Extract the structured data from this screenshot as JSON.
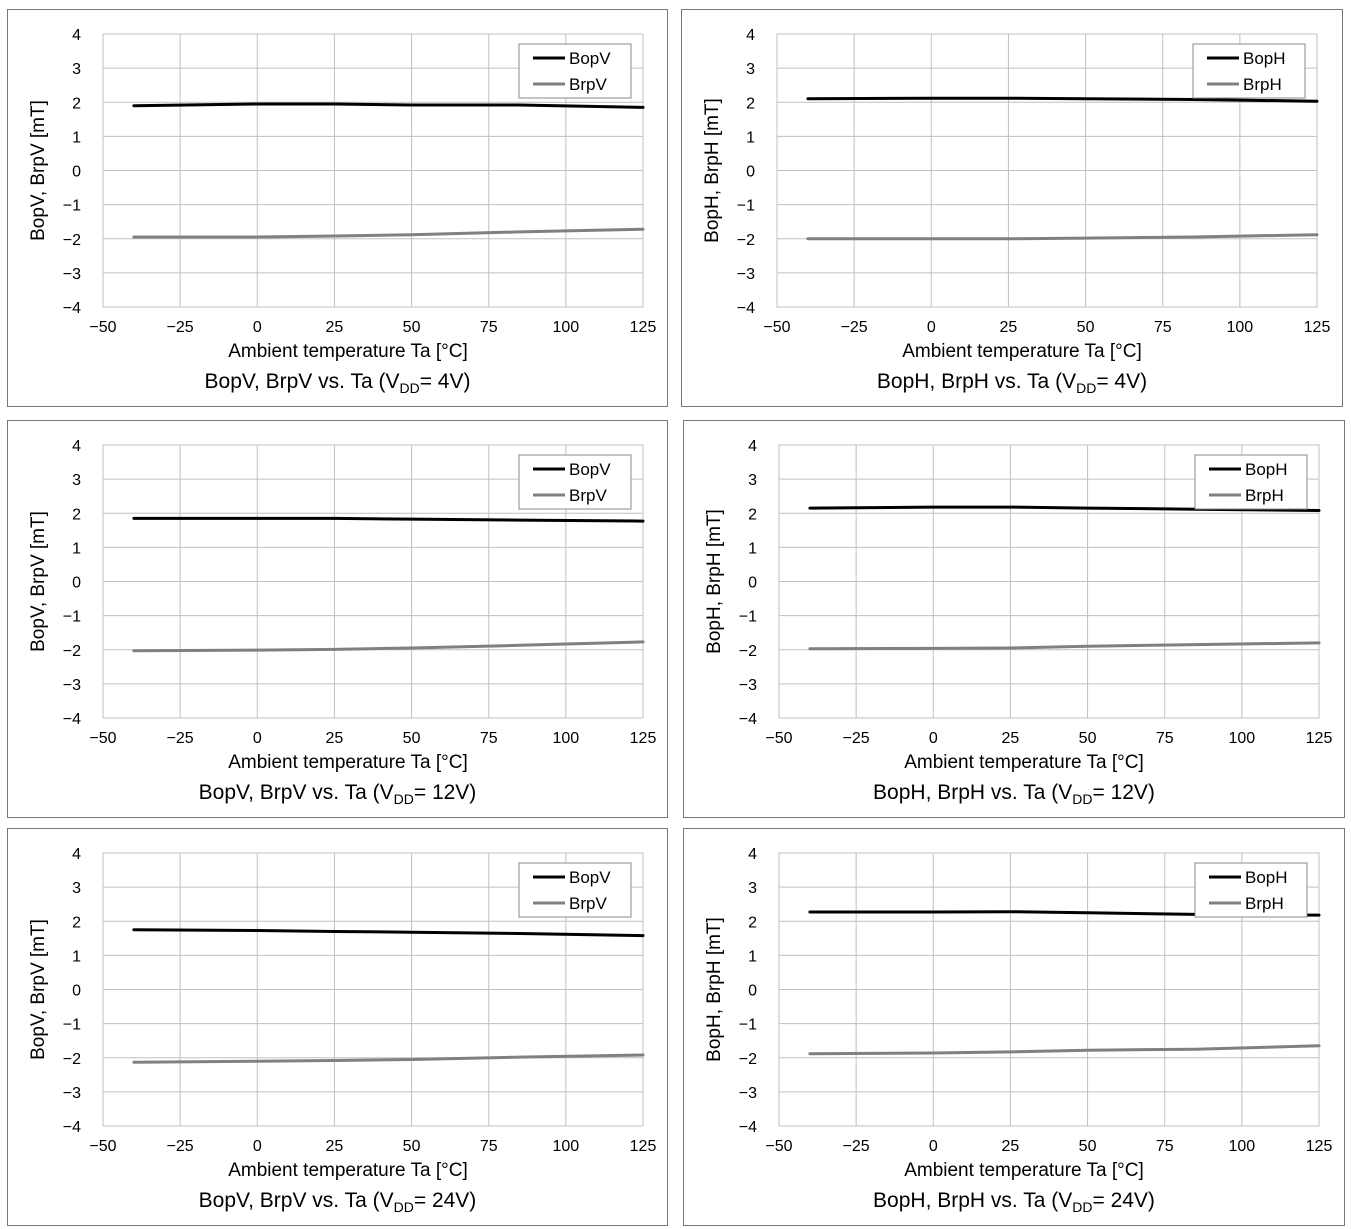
{
  "colors": {
    "bop": "#000000",
    "brp": "#808080",
    "grid": "#c0c0c0",
    "frame": "#777777"
  },
  "chart_data": [
    {
      "type": "line",
      "ylabel": "BopV, BrpV [mT]",
      "xlabel": "Ambient  temperature Ta [°C]",
      "caption": {
        "pre": "BopV, BrpV vs. Ta (V",
        "sub": "DD",
        "post": "= 4V)"
      },
      "xlim": [
        -50,
        125
      ],
      "ylim": [
        -4,
        4
      ],
      "xticks": [
        "−50",
        "−25",
        "0",
        "25",
        "50",
        "75",
        "100",
        "125"
      ],
      "yticks": [
        "4",
        "3",
        "2",
        "1",
        "0",
        "−1",
        "−2",
        "−3",
        "−4"
      ],
      "grid": true,
      "legend_position": "top-right",
      "x": [
        -40,
        0,
        25,
        50,
        85,
        125
      ],
      "series": [
        {
          "name": "BopV",
          "values": [
            1.9,
            1.95,
            1.95,
            1.92,
            1.92,
            1.85
          ]
        },
        {
          "name": "BrpV",
          "values": [
            -1.95,
            -1.95,
            -1.92,
            -1.88,
            -1.8,
            -1.72
          ]
        }
      ]
    },
    {
      "type": "line",
      "ylabel": "BopH, BrpH [mT]",
      "xlabel": "Ambient  temperature Ta [°C]",
      "caption": {
        "pre": "BopH, BrpH vs. Ta (V",
        "sub": "DD",
        "post": "= 4V)"
      },
      "xlim": [
        -50,
        125
      ],
      "ylim": [
        -4,
        4
      ],
      "xticks": [
        "−50",
        "−25",
        "0",
        "25",
        "50",
        "75",
        "100",
        "125"
      ],
      "yticks": [
        "4",
        "3",
        "2",
        "1",
        "0",
        "−1",
        "−2",
        "−3",
        "−4"
      ],
      "grid": true,
      "legend_position": "top-right",
      "x": [
        -40,
        0,
        25,
        50,
        85,
        125
      ],
      "series": [
        {
          "name": "BopH",
          "values": [
            2.1,
            2.12,
            2.12,
            2.1,
            2.08,
            2.03
          ]
        },
        {
          "name": "BrpH",
          "values": [
            -2.0,
            -2.0,
            -2.0,
            -1.98,
            -1.95,
            -1.88
          ]
        }
      ]
    },
    {
      "type": "line",
      "ylabel": "BopV, BrpV [mT]",
      "xlabel": "Ambient  temperature Ta [°C]",
      "caption": {
        "pre": "BopV, BrpV vs. Ta (V",
        "sub": "DD",
        "post": "= 12V)"
      },
      "xlim": [
        -50,
        125
      ],
      "ylim": [
        -4,
        4
      ],
      "xticks": [
        "−50",
        "−25",
        "0",
        "25",
        "50",
        "75",
        "100",
        "125"
      ],
      "yticks": [
        "4",
        "3",
        "2",
        "1",
        "0",
        "−1",
        "−2",
        "−3",
        "−4"
      ],
      "grid": true,
      "legend_position": "top-right",
      "x": [
        -40,
        0,
        25,
        50,
        85,
        125
      ],
      "series": [
        {
          "name": "BopV",
          "values": [
            1.85,
            1.85,
            1.85,
            1.83,
            1.8,
            1.77
          ]
        },
        {
          "name": "BrpV",
          "values": [
            -2.03,
            -2.01,
            -1.99,
            -1.95,
            -1.87,
            -1.77
          ]
        }
      ]
    },
    {
      "type": "line",
      "ylabel": "BopH, BrpH [mT]",
      "xlabel": "Ambient  temperature Ta [°C]",
      "caption": {
        "pre": "BopH, BrpH vs. Ta (V",
        "sub": "DD",
        "post": "= 12V)"
      },
      "xlim": [
        -50,
        125
      ],
      "ylim": [
        -4,
        4
      ],
      "xticks": [
        "−50",
        "−25",
        "0",
        "25",
        "50",
        "75",
        "100",
        "125"
      ],
      "yticks": [
        "4",
        "3",
        "2",
        "1",
        "0",
        "−1",
        "−2",
        "−3",
        "−4"
      ],
      "grid": true,
      "legend_position": "top-right",
      "x": [
        -40,
        0,
        25,
        50,
        85,
        125
      ],
      "series": [
        {
          "name": "BopH",
          "values": [
            2.15,
            2.18,
            2.18,
            2.15,
            2.12,
            2.08
          ]
        },
        {
          "name": "BrpH",
          "values": [
            -1.97,
            -1.96,
            -1.95,
            -1.9,
            -1.85,
            -1.8
          ]
        }
      ]
    },
    {
      "type": "line",
      "ylabel": "BopV, BrpV [mT]",
      "xlabel": "Ambient  temperature Ta [°C]",
      "caption": {
        "pre": "BopV, BrpV vs. Ta (V",
        "sub": "DD",
        "post": "= 24V)"
      },
      "xlim": [
        -50,
        125
      ],
      "ylim": [
        -4,
        4
      ],
      "xticks": [
        "−50",
        "−25",
        "0",
        "25",
        "50",
        "75",
        "100",
        "125"
      ],
      "yticks": [
        "4",
        "3",
        "2",
        "1",
        "0",
        "−1",
        "−2",
        "−3",
        "−4"
      ],
      "grid": true,
      "legend_position": "top-right",
      "x": [
        -40,
        0,
        25,
        50,
        85,
        125
      ],
      "series": [
        {
          "name": "BopV",
          "values": [
            1.75,
            1.73,
            1.7,
            1.68,
            1.64,
            1.58
          ]
        },
        {
          "name": "BrpV",
          "values": [
            -2.13,
            -2.1,
            -2.08,
            -2.05,
            -1.98,
            -1.92
          ]
        }
      ]
    },
    {
      "type": "line",
      "ylabel": "BopH, BrpH [mT]",
      "xlabel": "Ambient  temperature Ta [°C]",
      "caption": {
        "pre": "BopH, BrpH vs. Ta (V",
        "sub": "DD",
        "post": "= 24V)"
      },
      "xlim": [
        -50,
        125
      ],
      "ylim": [
        -4,
        4
      ],
      "xticks": [
        "−50",
        "−25",
        "0",
        "25",
        "50",
        "75",
        "100",
        "125"
      ],
      "yticks": [
        "4",
        "3",
        "2",
        "1",
        "0",
        "−1",
        "−2",
        "−3",
        "−4"
      ],
      "grid": true,
      "legend_position": "top-right",
      "x": [
        -40,
        0,
        25,
        50,
        85,
        125
      ],
      "series": [
        {
          "name": "BopH",
          "values": [
            2.27,
            2.27,
            2.28,
            2.25,
            2.2,
            2.18
          ]
        },
        {
          "name": "BrpH",
          "values": [
            -1.88,
            -1.86,
            -1.83,
            -1.78,
            -1.75,
            -1.65
          ]
        }
      ]
    }
  ]
}
